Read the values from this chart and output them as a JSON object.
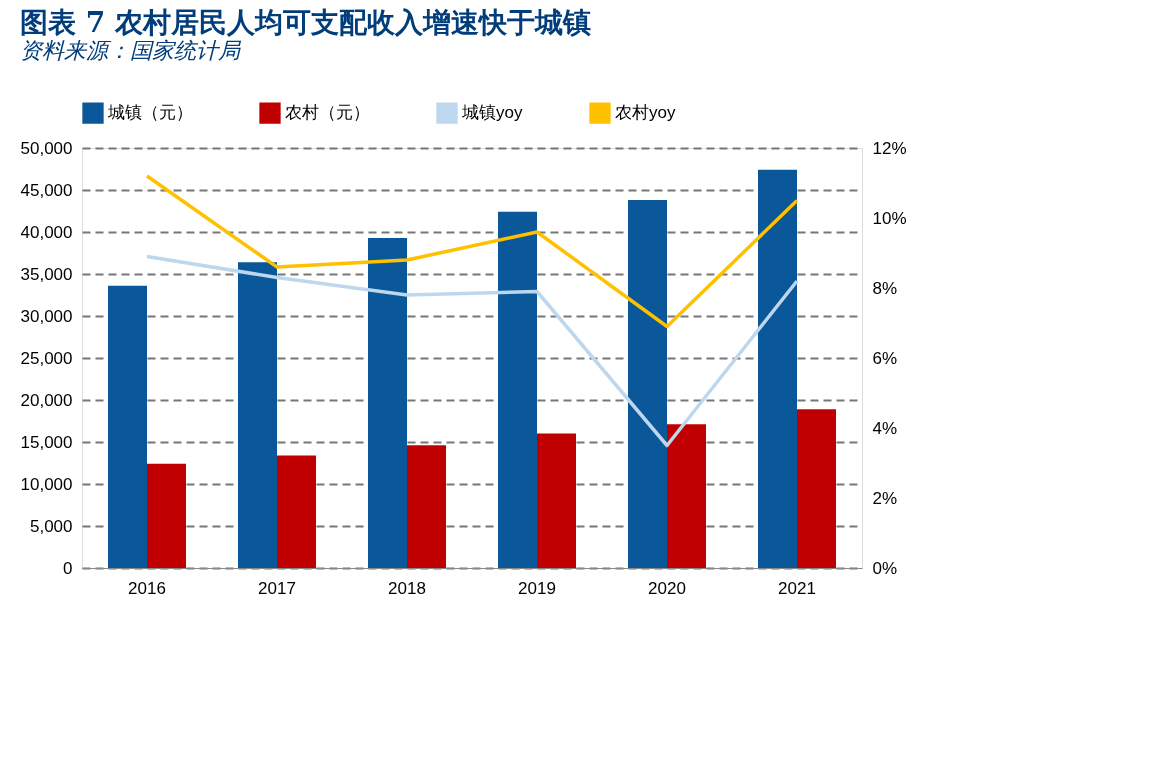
{
  "chart_data": {
    "type": "bar",
    "title": "图表 7  农村居民人均可支配收入增速快于城镇",
    "categories": [
      "2016",
      "2017",
      "2018",
      "2019",
      "2020",
      "2021"
    ],
    "series": [
      {
        "name": "城镇（元）",
        "color": "#0a5799",
        "values": [
          33600,
          36400,
          39300,
          42400,
          43800,
          47400
        ]
      },
      {
        "name": "农村（元）",
        "color": "#c00000",
        "values": [
          12400,
          13400,
          14600,
          16000,
          17100,
          18900
        ]
      },
      {
        "name": "城镇yoy",
        "type": "line",
        "axis": "y2",
        "color": "#bdd7ee",
        "values": [
          8.9,
          8.3,
          7.8,
          7.9,
          3.5,
          8.2
        ]
      },
      {
        "name": "农村yoy",
        "type": "line",
        "axis": "y2",
        "color": "#ffc000",
        "values": [
          11.2,
          8.6,
          8.8,
          9.6,
          6.9,
          10.5
        ]
      }
    ],
    "ylim": [
      0,
      50000
    ],
    "yticks": [
      {
        "value": 0,
        "label": "0"
      },
      {
        "value": 5000,
        "label": "5,000"
      },
      {
        "value": 10000,
        "label": "10,000"
      },
      {
        "value": 15000,
        "label": "15,000"
      },
      {
        "value": 20000,
        "label": "20,000"
      },
      {
        "value": 25000,
        "label": "25,000"
      },
      {
        "value": 30000,
        "label": "30,000"
      },
      {
        "value": 35000,
        "label": "35,000"
      },
      {
        "value": 40000,
        "label": "40,000"
      },
      {
        "value": 45000,
        "label": "45,000"
      },
      {
        "value": 50000,
        "label": "50,000"
      }
    ],
    "y2lim": [
      0,
      12
    ],
    "y2ticks": [
      {
        "value": 0,
        "label": "0%"
      },
      {
        "value": 2,
        "label": "2%"
      },
      {
        "value": 4,
        "label": "4%"
      },
      {
        "value": 6,
        "label": "6%"
      },
      {
        "value": 8,
        "label": "8%"
      },
      {
        "value": 10,
        "label": "10%"
      },
      {
        "value": 12,
        "label": "12%"
      }
    ],
    "grid": "y",
    "legend": "top",
    "marker": "none",
    "line_style": "solid",
    "annotations": [
      "资料来源：国家统计局"
    ]
  }
}
